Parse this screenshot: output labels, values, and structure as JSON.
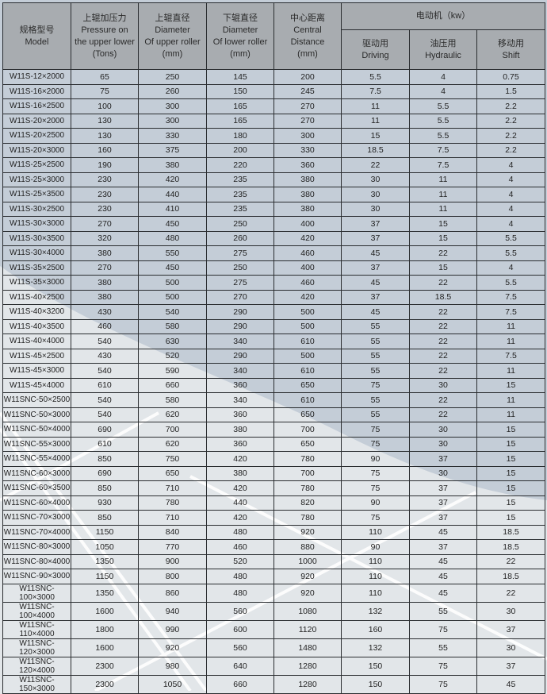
{
  "header": {
    "model": [
      "规格型号",
      "Model"
    ],
    "pressure": [
      "上辊加压力",
      "Pressure on",
      "the upper lower",
      "(Tons)"
    ],
    "upper_diameter": [
      "上辊直径",
      "Diameter",
      "Of upper roller",
      "(mm)"
    ],
    "lower_diameter": [
      "下辊直径",
      "Diameter",
      "Of lower roller",
      "(mm)"
    ],
    "central_distance": [
      "中心距离",
      "Central",
      "Distance",
      "(mm)"
    ],
    "motor": "电动机（kw）",
    "driving": [
      "驱动用",
      "Driving"
    ],
    "hydraulic": [
      "油压用",
      "Hydraulic"
    ],
    "shift": [
      "移动用",
      "Shift"
    ]
  },
  "rows": [
    [
      "W11S-12×2000",
      "65",
      "250",
      "145",
      "200",
      "5.5",
      "4",
      "0.75"
    ],
    [
      "W11S-16×2000",
      "75",
      "260",
      "150",
      "245",
      "7.5",
      "4",
      "1.5"
    ],
    [
      "W11S-16×2500",
      "100",
      "300",
      "165",
      "270",
      "11",
      "5.5",
      "2.2"
    ],
    [
      "W11S-20×2000",
      "130",
      "300",
      "165",
      "270",
      "11",
      "5.5",
      "2.2"
    ],
    [
      "W11S-20×2500",
      "130",
      "330",
      "180",
      "300",
      "15",
      "5.5",
      "2.2"
    ],
    [
      "W11S-20×3000",
      "160",
      "375",
      "200",
      "330",
      "18.5",
      "7.5",
      "2.2"
    ],
    [
      "W11S-25×2500",
      "190",
      "380",
      "220",
      "360",
      "22",
      "7.5",
      "4"
    ],
    [
      "W11S-25×3000",
      "230",
      "420",
      "235",
      "380",
      "30",
      "11",
      "4"
    ],
    [
      "W11S-25×3500",
      "230",
      "440",
      "235",
      "380",
      "30",
      "11",
      "4"
    ],
    [
      "W11S-30×2500",
      "230",
      "410",
      "235",
      "380",
      "30",
      "11",
      "4"
    ],
    [
      "W11S-30×3000",
      "270",
      "450",
      "250",
      "400",
      "37",
      "15",
      "4"
    ],
    [
      "W11S-30×3500",
      "320",
      "480",
      "260",
      "420",
      "37",
      "15",
      "5.5"
    ],
    [
      "W11S-30×4000",
      "380",
      "550",
      "275",
      "460",
      "45",
      "22",
      "5.5"
    ],
    [
      "W11S-35×2500",
      "270",
      "450",
      "250",
      "400",
      "37",
      "15",
      "4"
    ],
    [
      "W11S-35×3000",
      "380",
      "500",
      "275",
      "460",
      "45",
      "22",
      "5.5"
    ],
    [
      "W11S-40×2500",
      "380",
      "500",
      "270",
      "420",
      "37",
      "18.5",
      "7.5"
    ],
    [
      "W11S-40×3200",
      "430",
      "540",
      "290",
      "500",
      "45",
      "22",
      "7.5"
    ],
    [
      "W11S-40×3500",
      "460",
      "580",
      "290",
      "500",
      "55",
      "22",
      "11"
    ],
    [
      "W11S-40×4000",
      "540",
      "630",
      "340",
      "610",
      "55",
      "22",
      "11"
    ],
    [
      "W11S-45×2500",
      "430",
      "520",
      "290",
      "500",
      "55",
      "22",
      "7.5"
    ],
    [
      "W11S-45×3000",
      "540",
      "590",
      "340",
      "610",
      "55",
      "22",
      "11"
    ],
    [
      "W11S-45×4000",
      "610",
      "660",
      "360",
      "650",
      "75",
      "30",
      "15"
    ],
    [
      "W11SNC-50×2500",
      "540",
      "580",
      "340",
      "610",
      "55",
      "22",
      "11"
    ],
    [
      "W11SNC-50×3000",
      "540",
      "620",
      "360",
      "650",
      "55",
      "22",
      "11"
    ],
    [
      "W11SNC-50×4000",
      "690",
      "700",
      "380",
      "700",
      "75",
      "30",
      "15"
    ],
    [
      "W11SNC-55×3000",
      "610",
      "620",
      "360",
      "650",
      "75",
      "30",
      "15"
    ],
    [
      "W11SNC-55×4000",
      "850",
      "750",
      "420",
      "780",
      "90",
      "37",
      "15"
    ],
    [
      "W11SNC-60×3000",
      "690",
      "650",
      "380",
      "700",
      "75",
      "30",
      "15"
    ],
    [
      "W11SNC-60×3500",
      "850",
      "710",
      "420",
      "780",
      "75",
      "37",
      "15"
    ],
    [
      "W11SNC-60×4000",
      "930",
      "780",
      "440",
      "820",
      "90",
      "37",
      "15"
    ],
    [
      "W11SNC-70×3000",
      "850",
      "710",
      "420",
      "780",
      "75",
      "37",
      "15"
    ],
    [
      "W11SNC-70×4000",
      "1150",
      "840",
      "480",
      "920",
      "110",
      "45",
      "18.5"
    ],
    [
      "W11SNC-80×3000",
      "1050",
      "770",
      "460",
      "880",
      "90",
      "37",
      "18.5"
    ],
    [
      "W11SNC-80×4000",
      "1350",
      "900",
      "520",
      "1000",
      "110",
      "45",
      "22"
    ],
    [
      "W11SNC-90×3000",
      "1150",
      "800",
      "480",
      "920",
      "110",
      "45",
      "18.5"
    ],
    [
      "W11SNC-100×3000",
      "1350",
      "860",
      "480",
      "920",
      "110",
      "45",
      "22"
    ],
    [
      "W11SNC-100×4000",
      "1600",
      "940",
      "560",
      "1080",
      "132",
      "55",
      "30"
    ],
    [
      "W11SNC-110×4000",
      "1800",
      "990",
      "600",
      "1120",
      "160",
      "75",
      "37"
    ],
    [
      "W11SNC-120×3000",
      "1600",
      "920",
      "560",
      "1480",
      "132",
      "55",
      "30"
    ],
    [
      "W11SNC-120×4000",
      "2300",
      "980",
      "640",
      "1280",
      "150",
      "75",
      "37"
    ],
    [
      "W11SNC-150×3000",
      "2300",
      "1050",
      "660",
      "1280",
      "150",
      "75",
      "45"
    ]
  ]
}
